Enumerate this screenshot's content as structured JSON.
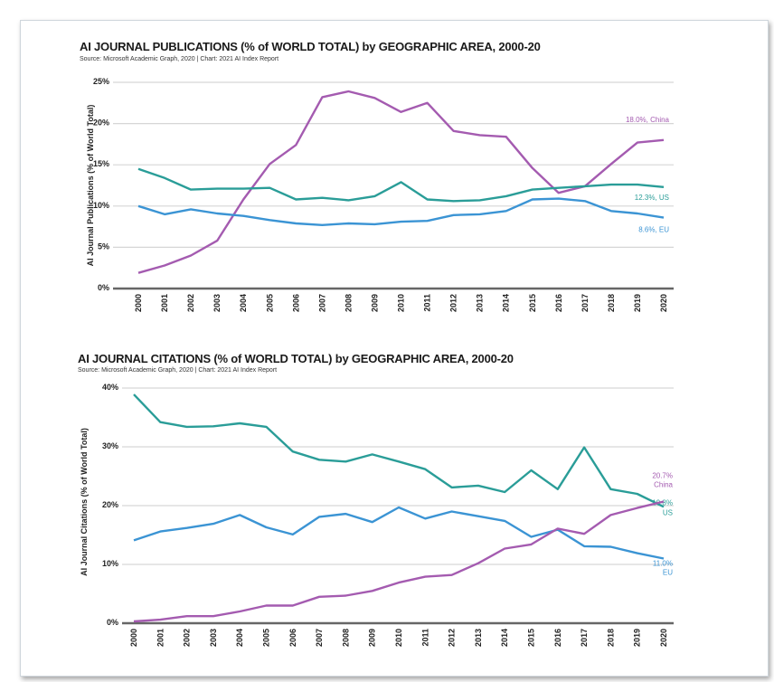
{
  "colors": {
    "China": "#a45bb0",
    "US": "#2a9d98",
    "EU": "#3b94d4",
    "grid": "#d6d6d6",
    "axis": "#666666"
  },
  "chart_data": [
    {
      "type": "line",
      "title": "AI JOURNAL PUBLICATIONS (% of WORLD TOTAL) by GEOGRAPHIC AREA, 2000-20",
      "subtitle": "Source: Microsoft Academic Graph, 2020 | Chart: 2021 AI Index Report",
      "ylabel": "AI Journal Publications (% of World Total)",
      "xlabel": "",
      "ylim": [
        0,
        25
      ],
      "yticks": [
        "0%",
        "5%",
        "10%",
        "15%",
        "20%",
        "25%"
      ],
      "ytick_values": [
        0,
        5,
        10,
        15,
        20,
        25
      ],
      "x": [
        "2000",
        "2001",
        "2002",
        "2003",
        "2004",
        "2005",
        "2006",
        "2007",
        "2008",
        "2009",
        "2010",
        "2011",
        "2012",
        "2013",
        "2014",
        "2015",
        "2016",
        "2017",
        "2018",
        "2019",
        "2020"
      ],
      "grid": true,
      "series": [
        {
          "name": "China",
          "end_label": [
            "18.0%, China"
          ],
          "values": [
            1.9,
            2.8,
            4.0,
            5.8,
            10.8,
            15.1,
            17.4,
            23.2,
            23.9,
            23.1,
            21.4,
            22.5,
            19.1,
            18.6,
            18.4,
            14.6,
            11.6,
            12.4,
            15.1,
            17.7,
            18.0
          ]
        },
        {
          "name": "US",
          "end_label": [
            "12.3%, US"
          ],
          "values": [
            14.5,
            13.4,
            12.0,
            12.1,
            12.1,
            12.2,
            10.8,
            11.0,
            10.7,
            11.2,
            12.9,
            10.8,
            10.6,
            10.7,
            11.2,
            12.0,
            12.2,
            12.4,
            12.6,
            12.6,
            12.3
          ]
        },
        {
          "name": "EU",
          "end_label": [
            "8.6%, EU"
          ],
          "values": [
            10.0,
            9.0,
            9.6,
            9.1,
            8.8,
            8.3,
            7.9,
            7.7,
            7.9,
            7.8,
            8.1,
            8.2,
            8.9,
            9.0,
            9.4,
            10.8,
            10.9,
            10.6,
            9.4,
            9.1,
            8.6
          ]
        }
      ]
    },
    {
      "type": "line",
      "title": "AI JOURNAL CITATIONS (% of WORLD TOTAL) by GEOGRAPHIC AREA, 2000-20",
      "subtitle": "Source: Microsoft Academic Graph, 2020 | Chart: 2021 AI Index Report",
      "ylabel": "AI Journal Citations (% of World Total)",
      "xlabel": "",
      "ylim": [
        0,
        40
      ],
      "yticks": [
        "0%",
        "10%",
        "20%",
        "30%",
        "40%"
      ],
      "ytick_values": [
        0,
        10,
        20,
        30,
        40
      ],
      "x": [
        "2000",
        "2001",
        "2002",
        "2003",
        "2004",
        "2005",
        "2006",
        "2007",
        "2008",
        "2009",
        "2010",
        "2011",
        "2012",
        "2013",
        "2014",
        "2015",
        "2016",
        "2017",
        "2018",
        "2019",
        "2020"
      ],
      "grid": true,
      "series": [
        {
          "name": "US",
          "end_label": [
            "19.8%",
            "US"
          ],
          "values": [
            38.9,
            34.2,
            33.4,
            33.5,
            34.0,
            33.4,
            29.2,
            27.8,
            27.5,
            28.7,
            27.5,
            26.2,
            23.1,
            23.4,
            22.3,
            26.0,
            22.8,
            29.9,
            22.8,
            22.0,
            19.8
          ]
        },
        {
          "name": "EU",
          "end_label": [
            "11.0%",
            "EU"
          ],
          "values": [
            14.1,
            15.6,
            16.2,
            16.9,
            18.4,
            16.3,
            15.1,
            18.1,
            18.6,
            17.2,
            19.7,
            17.8,
            19.0,
            18.2,
            17.4,
            14.7,
            15.9,
            13.1,
            13.0,
            11.9,
            11.0
          ]
        },
        {
          "name": "China",
          "end_label": [
            "20.7%",
            "China"
          ],
          "values": [
            0.3,
            0.6,
            1.2,
            1.2,
            2.0,
            3.0,
            3.0,
            4.5,
            4.7,
            5.5,
            6.9,
            7.9,
            8.2,
            10.2,
            12.7,
            13.4,
            16.1,
            15.2,
            18.4,
            19.6,
            20.7
          ]
        }
      ]
    }
  ]
}
